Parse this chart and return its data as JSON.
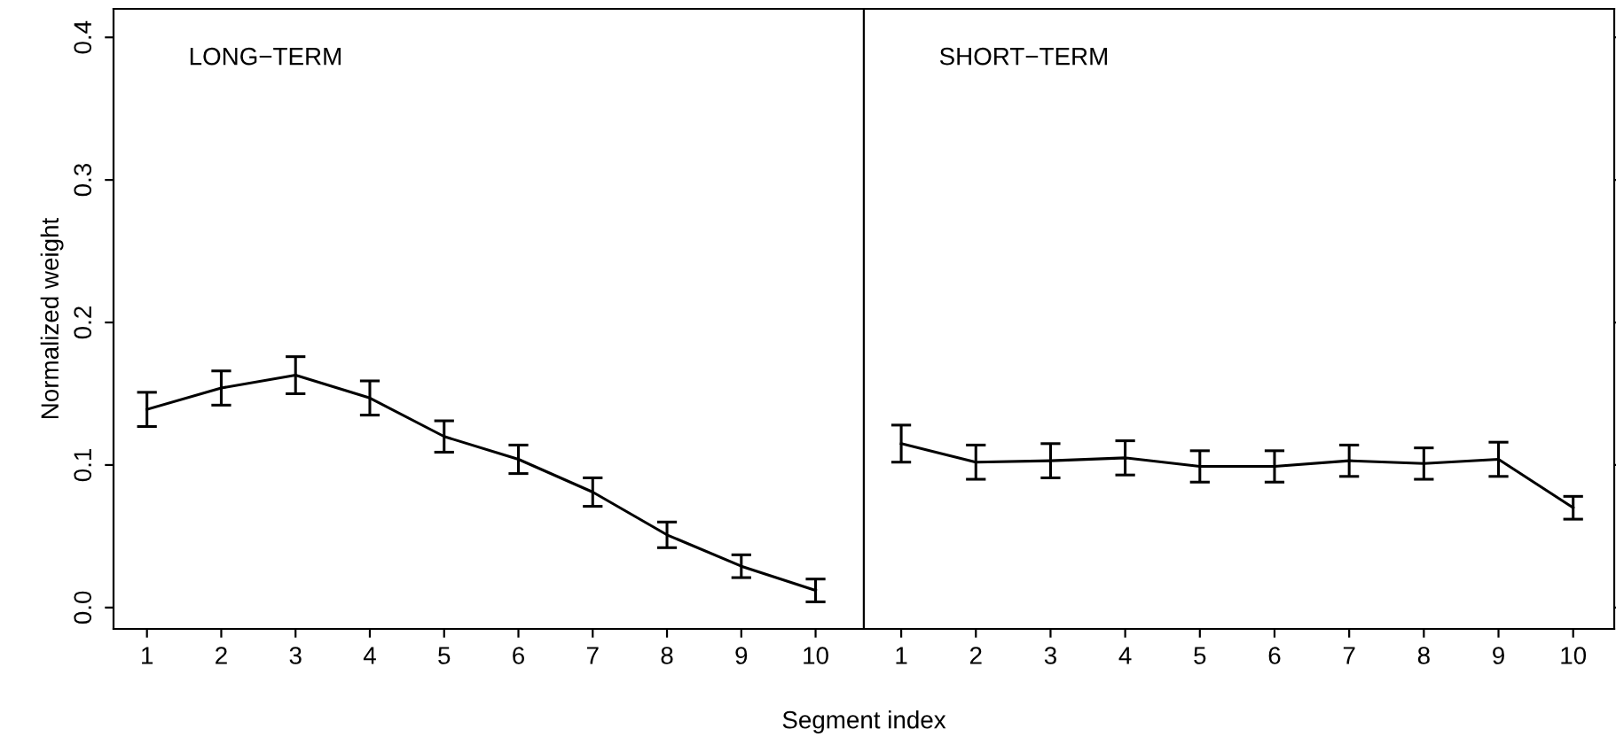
{
  "chart_data": [
    {
      "type": "line",
      "title": "LONG−TERM",
      "xlabel": "Segment index",
      "ylabel": "Normalized weight",
      "x": [
        1,
        2,
        3,
        4,
        5,
        6,
        7,
        8,
        9,
        10
      ],
      "series": [
        {
          "color": "#000000",
          "values": [
            0.139,
            0.154,
            0.163,
            0.147,
            0.12,
            0.104,
            0.081,
            0.051,
            0.029,
            0.012
          ],
          "errors": [
            0.012,
            0.012,
            0.013,
            0.012,
            0.011,
            0.01,
            0.01,
            0.009,
            0.008,
            0.008
          ]
        }
      ],
      "xlim": [
        0.55,
        10.65
      ],
      "xticks": [
        1,
        2,
        3,
        4,
        5,
        6,
        7,
        8,
        9,
        10
      ],
      "ylim": [
        -0.015,
        0.42
      ],
      "yticks": [
        {
          "value": 0,
          "label": "0.0"
        },
        0.1,
        0.2,
        0.3,
        0.4
      ],
      "marker": "none",
      "line_style": "solid",
      "grid": false
    },
    {
      "type": "line",
      "title": "SHORT−TERM",
      "x": [
        1,
        2,
        3,
        4,
        5,
        6,
        7,
        8,
        9,
        10
      ],
      "series": [
        {
          "color": "#000000",
          "values": [
            0.115,
            0.102,
            0.103,
            0.105,
            0.099,
            0.099,
            0.103,
            0.101,
            0.104,
            0.07
          ],
          "errors": [
            0.013,
            0.012,
            0.012,
            0.012,
            0.011,
            0.011,
            0.011,
            0.011,
            0.012,
            0.008
          ]
        }
      ],
      "xlim": [
        0.5,
        10.55
      ],
      "xticks": [
        1,
        2,
        3,
        4,
        5,
        6,
        7,
        8,
        9,
        10
      ],
      "ylim": [
        -0.015,
        0.42
      ],
      "yticks": [
        {
          "value": 0,
          "label": null
        },
        {
          "value": 0.1,
          "label": null
        },
        {
          "value": 0.2,
          "label": null
        },
        {
          "value": 0.3,
          "label": null
        },
        {
          "value": 0.4,
          "label": null
        }
      ],
      "tick_labels": "x",
      "marker": "none",
      "line_style": "solid",
      "grid": false
    }
  ]
}
